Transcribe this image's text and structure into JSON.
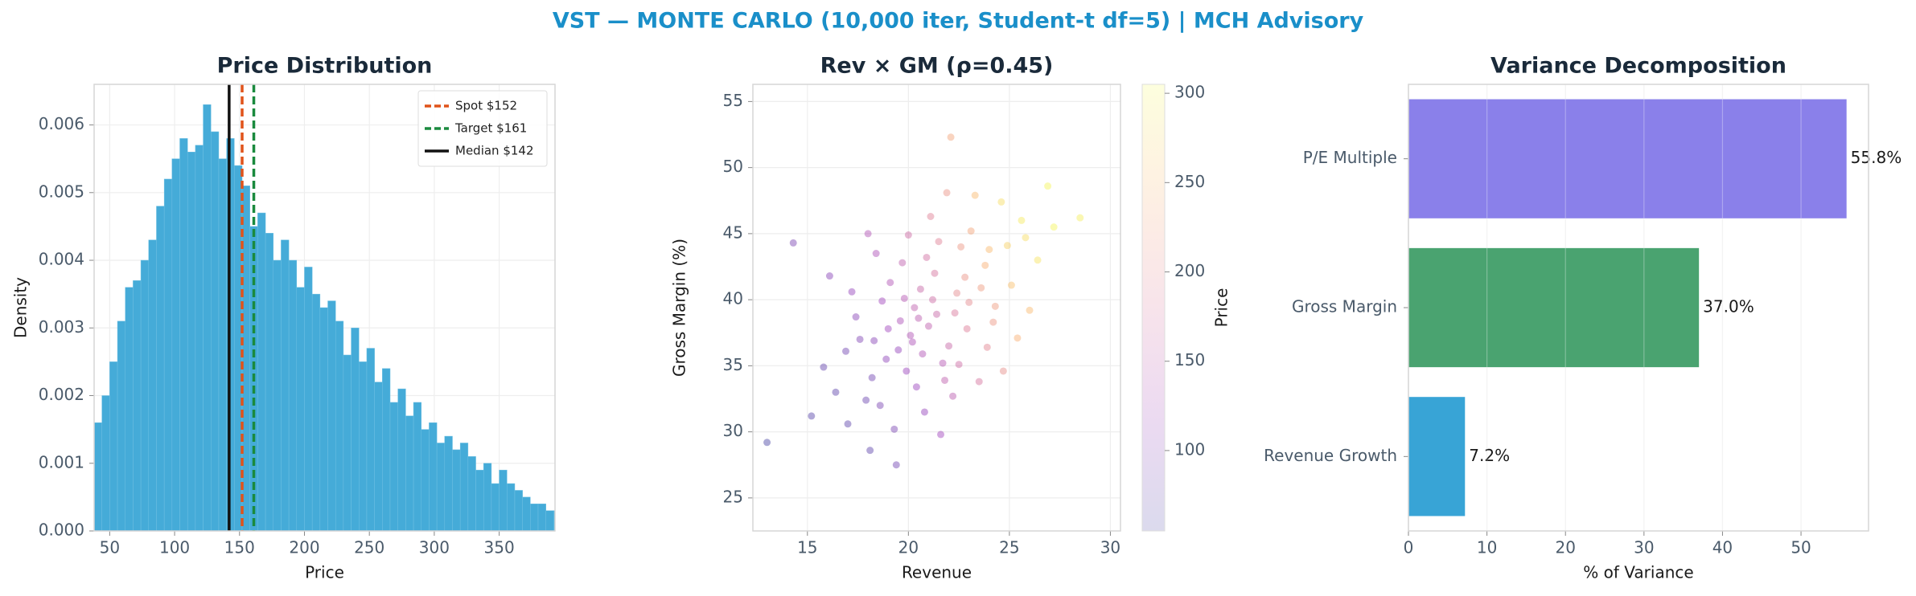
{
  "title": "VST — MONTE CARLO (10,000 iter, Student-t df=5) | MCH Advisory",
  "chart_data": [
    {
      "type": "histogram",
      "title": "Price Distribution",
      "x_label": "Price",
      "y_label": "Density",
      "color": "#45abd8",
      "bins": [
        38,
        44,
        50,
        56,
        62,
        68,
        74,
        80,
        86,
        92,
        98,
        104,
        110,
        116,
        122,
        128,
        134,
        140,
        146,
        152,
        158,
        164,
        170,
        176,
        182,
        188,
        194,
        200,
        206,
        212,
        218,
        224,
        230,
        236,
        242,
        248,
        254,
        260,
        266,
        272,
        278,
        284,
        290,
        296,
        302,
        308,
        314,
        320,
        326,
        332,
        338,
        344,
        350,
        356,
        362,
        368,
        374,
        380,
        386,
        392,
        398
      ],
      "values": [
        0.0016,
        0.002,
        0.0025,
        0.0031,
        0.0036,
        0.0037,
        0.004,
        0.0043,
        0.0048,
        0.0052,
        0.0055,
        0.0058,
        0.0056,
        0.0057,
        0.0063,
        0.0059,
        0.0055,
        0.0058,
        0.0054,
        0.0051,
        0.0045,
        0.0047,
        0.0044,
        0.004,
        0.0043,
        0.004,
        0.0036,
        0.0039,
        0.0035,
        0.0033,
        0.0034,
        0.0031,
        0.0026,
        0.003,
        0.0025,
        0.0027,
        0.0022,
        0.0024,
        0.0019,
        0.0021,
        0.0017,
        0.0019,
        0.0015,
        0.0016,
        0.0013,
        0.0014,
        0.0012,
        0.0013,
        0.0011,
        0.0009,
        0.001,
        0.0007,
        0.0009,
        0.0007,
        0.0006,
        0.0005,
        0.0004,
        0.0004,
        0.0003,
        0.0003
      ],
      "reference_lines": [
        {
          "name": "Spot $152",
          "value": 152,
          "color": "#e0531a",
          "dashed": true
        },
        {
          "name": "Target $161",
          "value": 161,
          "color": "#1a8a3e",
          "dashed": true
        },
        {
          "name": "Median $142",
          "value": 142,
          "color": "#111111",
          "dashed": false
        }
      ],
      "legend": "upper right",
      "grid": true,
      "xlim": [
        38,
        393
      ],
      "xticks": [
        50,
        100,
        150,
        200,
        250,
        300,
        350
      ],
      "ylim": [
        0,
        0.0066
      ],
      "yticks": [
        {
          "value": 0,
          "label": "0.000"
        },
        {
          "value": 0.001,
          "label": "0.001"
        },
        {
          "value": 0.002,
          "label": "0.002"
        },
        {
          "value": 0.003,
          "label": "0.003"
        },
        {
          "value": 0.004,
          "label": "0.004"
        },
        {
          "value": 0.005,
          "label": "0.005"
        },
        {
          "value": 0.006,
          "label": "0.006"
        }
      ]
    },
    {
      "type": "scatter",
      "title": "Rev × GM (ρ=0.45)",
      "x_label": "Revenue",
      "y_label": "Gross Margin (%)",
      "colorbar_label": "Price",
      "colormap": "plasma",
      "grid": true,
      "x": [
        21.0,
        19.5,
        22.4,
        18.2,
        23.8,
        20.3,
        17.6,
        24.9,
        21.7,
        19.1,
        22.9,
        16.4,
        25.6,
        20.8,
        18.7,
        23.1,
        21.3,
        19.9,
        26.4,
        15.2,
        22.0,
        20.1,
        24.3,
        17.9,
        21.9,
        18.4,
        23.5,
        20.6,
        19.3,
        25.1,
        22.6,
        16.9,
        21.4,
        27.2,
        20.0,
        18.9,
        23.0,
        19.6,
        22.2,
        14.3,
        24.6,
        20.4,
        17.2,
        21.1,
        23.9,
        19.0,
        26.0,
        18.1,
        22.8,
        20.7,
        24.0,
        15.8,
        21.6,
        19.7,
        25.4,
        17.4,
        22.3,
        20.9,
        18.6,
        23.3,
        21.2,
        13.0,
        28.5,
        19.4,
        22.1,
        24.7,
        16.1,
        20.2,
        26.9,
        18.0,
        23.6,
        21.8,
        19.8,
        22.5,
        25.8,
        17.0,
        20.5,
        24.2,
        18.3,
        21.5
      ],
      "y": [
        38.0,
        36.2,
        40.5,
        34.1,
        42.6,
        39.4,
        37.0,
        44.1,
        35.2,
        41.3,
        37.8,
        33.0,
        46.0,
        31.5,
        39.9,
        45.2,
        42.0,
        34.6,
        43.0,
        31.2,
        36.5,
        37.3,
        39.5,
        32.4,
        48.1,
        43.5,
        33.8,
        40.8,
        30.2,
        41.1,
        44.0,
        36.1,
        38.9,
        45.5,
        44.9,
        35.5,
        39.8,
        38.4,
        32.7,
        44.3,
        47.4,
        33.4,
        40.6,
        46.3,
        36.4,
        37.8,
        39.2,
        28.6,
        41.7,
        35.9,
        43.8,
        34.9,
        29.8,
        42.8,
        37.1,
        38.7,
        39.0,
        43.2,
        32.0,
        47.9,
        40.0,
        29.2,
        46.2,
        27.5,
        52.3,
        34.6,
        41.8,
        36.8,
        48.6,
        45.0,
        40.9,
        33.9,
        40.1,
        35.1,
        44.7,
        30.6,
        38.6,
        38.3,
        36.9,
        44.4
      ],
      "color_values": [
        150,
        110,
        200,
        85,
        240,
        150,
        95,
        270,
        140,
        135,
        185,
        70,
        290,
        110,
        120,
        230,
        175,
        115,
        285,
        65,
        160,
        135,
        220,
        80,
        210,
        130,
        175,
        160,
        90,
        255,
        215,
        85,
        160,
        300,
        165,
        105,
        200,
        130,
        145,
        90,
        280,
        115,
        110,
        190,
        195,
        120,
        250,
        70,
        210,
        135,
        250,
        75,
        120,
        150,
        240,
        100,
        180,
        170,
        90,
        250,
        165,
        55,
        295,
        85,
        230,
        205,
        100,
        130,
        300,
        135,
        220,
        150,
        140,
        165,
        280,
        70,
        145,
        215,
        100,
        190
      ],
      "xlim": [
        12.3,
        30.5
      ],
      "xticks": [
        15,
        20,
        25,
        30
      ],
      "ylim": [
        22.5,
        56.3
      ],
      "yticks": [
        25,
        30,
        35,
        40,
        45,
        50,
        55
      ],
      "clim": [
        55,
        305
      ],
      "cticks": [
        100,
        150,
        200,
        250,
        300
      ]
    },
    {
      "type": "barh",
      "title": "Variance Decomposition",
      "x_label": "% of Variance",
      "grid": true,
      "categories": [
        "P/E Multiple",
        "Gross Margin",
        "Revenue Growth"
      ],
      "values": [
        55.8,
        37.0,
        7.2
      ],
      "value_labels": [
        "55.8%",
        "37.0%",
        "7.2%"
      ],
      "colors": [
        "#8a80ea",
        "#4aa370",
        "#38a4d6"
      ],
      "xlim": [
        0,
        58.6
      ],
      "xticks": [
        0,
        10,
        20,
        30,
        40,
        50
      ]
    }
  ]
}
